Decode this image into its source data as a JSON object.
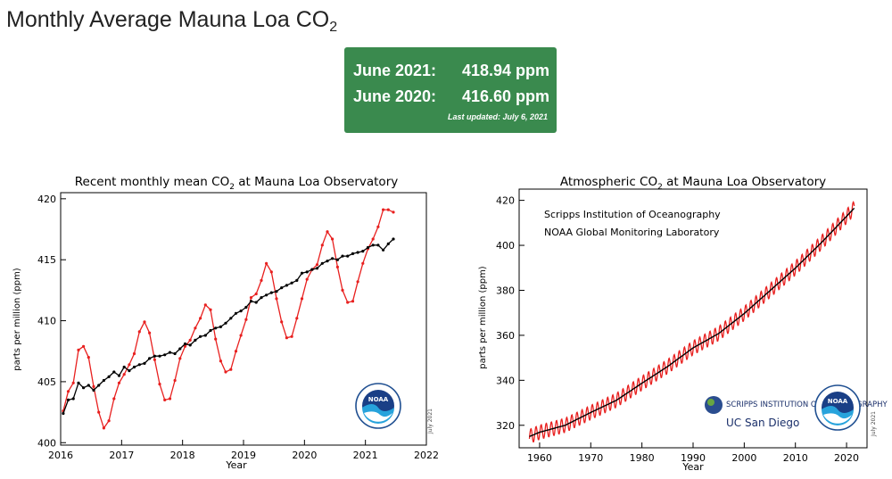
{
  "page": {
    "title": "Monthly Average Mauna Loa CO",
    "title_sub": "2"
  },
  "stats": {
    "current_label": "June 2021:",
    "current_value": "418.94 ppm",
    "previous_label": "June 2020:",
    "previous_value": "416.60 ppm",
    "last_updated": "Last updated: July 6, 2021"
  },
  "colors": {
    "stat_bg": "#3a8a4e",
    "monthly_series": "#e8201f",
    "trend_series": "#000000"
  },
  "chart_data": [
    {
      "type": "line",
      "title": "Recent monthly mean CO",
      "title_sub": "2",
      "title_suffix": " at Mauna Loa Observatory",
      "xlabel": "Year",
      "ylabel": "parts per million (ppm)",
      "xlim": [
        2016,
        2022
      ],
      "ylim": [
        399.8,
        420.5
      ],
      "xticks": [
        2016,
        2017,
        2018,
        2019,
        2020,
        2021,
        2022
      ],
      "yticks": [
        400,
        405,
        410,
        415,
        420
      ],
      "series": [
        {
          "name": "Monthly mean",
          "color": "#e8201f",
          "x": [
            2016.042,
            2016.125,
            2016.208,
            2016.292,
            2016.375,
            2016.458,
            2016.542,
            2016.625,
            2016.708,
            2016.792,
            2016.875,
            2016.958,
            2017.042,
            2017.125,
            2017.208,
            2017.292,
            2017.375,
            2017.458,
            2017.542,
            2017.625,
            2017.708,
            2017.792,
            2017.875,
            2017.958,
            2018.042,
            2018.125,
            2018.208,
            2018.292,
            2018.375,
            2018.458,
            2018.542,
            2018.625,
            2018.708,
            2018.792,
            2018.875,
            2018.958,
            2019.042,
            2019.125,
            2019.208,
            2019.292,
            2019.375,
            2019.458,
            2019.542,
            2019.625,
            2019.708,
            2019.792,
            2019.875,
            2019.958,
            2020.042,
            2020.125,
            2020.208,
            2020.292,
            2020.375,
            2020.458,
            2020.542,
            2020.625,
            2020.708,
            2020.792,
            2020.875,
            2020.958,
            2021.042,
            2021.125,
            2021.208,
            2021.292,
            2021.375,
            2021.458
          ],
          "y": [
            402.6,
            404.2,
            404.9,
            407.6,
            407.9,
            407.0,
            404.6,
            402.5,
            401.2,
            401.8,
            403.6,
            404.9,
            405.6,
            406.4,
            407.3,
            409.1,
            409.9,
            409.0,
            406.8,
            404.8,
            403.5,
            403.6,
            405.1,
            406.9,
            407.9,
            408.4,
            409.4,
            410.2,
            411.3,
            410.9,
            408.5,
            406.7,
            405.8,
            406.0,
            407.5,
            408.8,
            410.1,
            411.9,
            412.2,
            413.3,
            414.7,
            414.0,
            411.8,
            409.9,
            408.6,
            408.7,
            410.2,
            411.8,
            413.4,
            414.2,
            414.6,
            416.2,
            417.3,
            416.7,
            414.4,
            412.5,
            411.5,
            411.6,
            413.2,
            414.7,
            415.9,
            416.7,
            417.7,
            419.1,
            419.1,
            418.9
          ]
        },
        {
          "name": "Seasonally corrected",
          "color": "#000000",
          "x": [
            2016.042,
            2016.125,
            2016.208,
            2016.292,
            2016.375,
            2016.458,
            2016.542,
            2016.625,
            2016.708,
            2016.792,
            2016.875,
            2016.958,
            2017.042,
            2017.125,
            2017.208,
            2017.292,
            2017.375,
            2017.458,
            2017.542,
            2017.625,
            2017.708,
            2017.792,
            2017.875,
            2017.958,
            2018.042,
            2018.125,
            2018.208,
            2018.292,
            2018.375,
            2018.458,
            2018.542,
            2018.625,
            2018.708,
            2018.792,
            2018.875,
            2018.958,
            2019.042,
            2019.125,
            2019.208,
            2019.292,
            2019.375,
            2019.458,
            2019.542,
            2019.625,
            2019.708,
            2019.792,
            2019.875,
            2019.958,
            2020.042,
            2020.125,
            2020.208,
            2020.292,
            2020.375,
            2020.458,
            2020.542,
            2020.625,
            2020.708,
            2020.792,
            2020.875,
            2020.958,
            2021.042,
            2021.125,
            2021.208,
            2021.292,
            2021.375,
            2021.458
          ],
          "y": [
            402.4,
            403.5,
            403.6,
            404.9,
            404.5,
            404.7,
            404.3,
            404.7,
            405.1,
            405.4,
            405.8,
            405.5,
            406.2,
            405.9,
            406.2,
            406.4,
            406.5,
            406.9,
            407.1,
            407.1,
            407.2,
            407.4,
            407.3,
            407.7,
            408.1,
            408.0,
            408.4,
            408.7,
            408.8,
            409.2,
            409.4,
            409.5,
            409.8,
            410.2,
            410.6,
            410.8,
            411.1,
            411.6,
            411.5,
            411.9,
            412.1,
            412.3,
            412.4,
            412.7,
            412.9,
            413.1,
            413.3,
            413.9,
            414.0,
            414.2,
            414.3,
            414.7,
            414.9,
            415.1,
            415.0,
            415.3,
            415.3,
            415.5,
            415.6,
            415.7,
            416.0,
            416.2,
            416.2,
            415.8,
            416.3,
            416.7
          ]
        }
      ]
    },
    {
      "type": "line",
      "title": "Atmospheric CO",
      "title_sub": "2",
      "title_suffix": " at Mauna Loa Observatory",
      "xlabel": "Year",
      "ylabel": "parts per million (ppm)",
      "xlim": [
        1956,
        2024
      ],
      "ylim": [
        310,
        425
      ],
      "xticks": [
        1960,
        1970,
        1980,
        1990,
        2000,
        2010,
        2020
      ],
      "yticks": [
        320,
        340,
        360,
        380,
        400,
        420
      ],
      "annotations": [
        "Scripps Institution of Oceanography",
        "NOAA Global Monitoring Laboratory"
      ],
      "trend": {
        "name": "Annual trend",
        "color": "#000000",
        "x": [
          1958,
          1960,
          1965,
          1970,
          1975,
          1980,
          1985,
          1990,
          1995,
          2000,
          2005,
          2010,
          2015,
          2021.5
        ],
        "y": [
          315.0,
          316.9,
          320.0,
          325.7,
          331.1,
          338.7,
          346.1,
          354.4,
          360.8,
          369.7,
          379.8,
          389.9,
          401.0,
          416.5
        ]
      },
      "seasonal": {
        "name": "Monthly mean",
        "color": "#e8201f",
        "amplitude_ppm": 3.2
      }
    }
  ],
  "logos": {
    "noaa": "NOAA",
    "scripps": "SCRIPPS INSTITUTION OF OCEANOGRAPHY",
    "ucsd": "UC San Diego",
    "credit": "July 2021"
  }
}
